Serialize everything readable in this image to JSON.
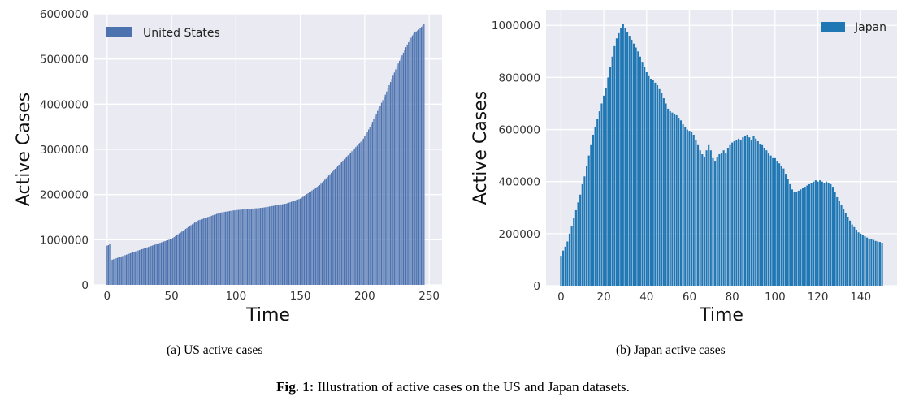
{
  "figure": {
    "caption_prefix": "Fig. 1:",
    "caption_text": " Illustration of active cases on the US and Japan datasets."
  },
  "chart_data": [
    {
      "type": "bar",
      "subcaption": "(a)  US active cases",
      "title": "",
      "xlabel": "Time",
      "ylabel": "Active Cases",
      "legend": "United States",
      "legend_position": "top-left",
      "color": "#4c72b0",
      "grid": true,
      "xlim": [
        -10,
        260
      ],
      "ylim": [
        0,
        6000000
      ],
      "xticks": [
        0,
        50,
        100,
        150,
        200,
        250
      ],
      "yticks": [
        0,
        1000000,
        2000000,
        3000000,
        4000000,
        5000000,
        6000000
      ],
      "series": [
        {
          "name": "United States",
          "x_start": 0,
          "values": [
            870000,
            880000,
            900000,
            550000,
            560000,
            570000,
            580000,
            590000,
            600000,
            610000,
            620000,
            630000,
            640000,
            650000,
            660000,
            670000,
            680000,
            690000,
            700000,
            710000,
            720000,
            730000,
            740000,
            750000,
            760000,
            770000,
            780000,
            790000,
            800000,
            810000,
            820000,
            830000,
            840000,
            850000,
            860000,
            870000,
            880000,
            890000,
            900000,
            910000,
            920000,
            930000,
            940000,
            950000,
            960000,
            970000,
            980000,
            990000,
            1000000,
            1010000,
            1020000,
            1040000,
            1060000,
            1080000,
            1100000,
            1120000,
            1140000,
            1160000,
            1180000,
            1200000,
            1220000,
            1240000,
            1260000,
            1280000,
            1300000,
            1320000,
            1340000,
            1360000,
            1380000,
            1400000,
            1420000,
            1430000,
            1440000,
            1450000,
            1460000,
            1470000,
            1480000,
            1490000,
            1500000,
            1510000,
            1520000,
            1530000,
            1540000,
            1550000,
            1560000,
            1570000,
            1580000,
            1590000,
            1600000,
            1605000,
            1610000,
            1615000,
            1620000,
            1625000,
            1630000,
            1635000,
            1640000,
            1645000,
            1650000,
            1650000,
            1655000,
            1660000,
            1660000,
            1665000,
            1665000,
            1670000,
            1670000,
            1675000,
            1675000,
            1680000,
            1680000,
            1685000,
            1685000,
            1690000,
            1690000,
            1695000,
            1695000,
            1700000,
            1700000,
            1705000,
            1705000,
            1710000,
            1715000,
            1720000,
            1725000,
            1730000,
            1735000,
            1740000,
            1745000,
            1750000,
            1755000,
            1760000,
            1765000,
            1770000,
            1775000,
            1780000,
            1785000,
            1790000,
            1795000,
            1800000,
            1810000,
            1820000,
            1830000,
            1840000,
            1850000,
            1860000,
            1870000,
            1880000,
            1890000,
            1900000,
            1910000,
            1930000,
            1950000,
            1970000,
            1990000,
            2010000,
            2030000,
            2050000,
            2070000,
            2090000,
            2110000,
            2130000,
            2150000,
            2170000,
            2190000,
            2210000,
            2240000,
            2270000,
            2300000,
            2330000,
            2360000,
            2390000,
            2420000,
            2450000,
            2480000,
            2510000,
            2540000,
            2570000,
            2600000,
            2630000,
            2660000,
            2690000,
            2720000,
            2750000,
            2780000,
            2810000,
            2840000,
            2870000,
            2900000,
            2930000,
            2960000,
            2990000,
            3020000,
            3050000,
            3080000,
            3110000,
            3140000,
            3170000,
            3200000,
            3240000,
            3290000,
            3340000,
            3390000,
            3440000,
            3490000,
            3550000,
            3610000,
            3670000,
            3730000,
            3790000,
            3850000,
            3910000,
            3970000,
            4030000,
            4090000,
            4150000,
            4210000,
            4280000,
            4350000,
            4420000,
            4490000,
            4560000,
            4630000,
            4700000,
            4770000,
            4840000,
            4900000,
            4960000,
            5020000,
            5080000,
            5140000,
            5200000,
            5260000,
            5320000,
            5370000,
            5420000,
            5470000,
            5520000,
            5560000,
            5590000,
            5610000,
            5630000,
            5650000,
            5680000,
            5710000,
            5740000,
            5780000
          ]
        }
      ]
    },
    {
      "type": "bar",
      "subcaption": "(b)  Japan active cases",
      "title": "",
      "xlabel": "Time",
      "ylabel": "Active Cases",
      "legend": "Japan",
      "legend_position": "top-right",
      "color": "#1f77b4",
      "grid": true,
      "xlim": [
        -7,
        157
      ],
      "ylim": [
        0,
        1060000
      ],
      "xticks": [
        0,
        20,
        40,
        60,
        80,
        100,
        120,
        140
      ],
      "yticks": [
        0,
        200000,
        400000,
        600000,
        800000,
        1000000
      ],
      "series": [
        {
          "name": "Japan",
          "x_start": 0,
          "values": [
            115000,
            135000,
            150000,
            170000,
            200000,
            230000,
            260000,
            290000,
            320000,
            350000,
            390000,
            420000,
            460000,
            500000,
            540000,
            580000,
            610000,
            640000,
            670000,
            700000,
            730000,
            760000,
            800000,
            840000,
            880000,
            920000,
            950000,
            970000,
            990000,
            1005000,
            990000,
            975000,
            960000,
            945000,
            930000,
            915000,
            900000,
            880000,
            860000,
            840000,
            820000,
            805000,
            795000,
            790000,
            780000,
            770000,
            755000,
            740000,
            720000,
            700000,
            680000,
            670000,
            665000,
            660000,
            655000,
            645000,
            635000,
            620000,
            610000,
            600000,
            595000,
            590000,
            580000,
            560000,
            540000,
            520000,
            505000,
            495000,
            520000,
            540000,
            520000,
            490000,
            480000,
            495000,
            505000,
            510000,
            520000,
            510000,
            530000,
            540000,
            550000,
            555000,
            560000,
            565000,
            560000,
            570000,
            575000,
            580000,
            570000,
            560000,
            575000,
            565000,
            555000,
            545000,
            540000,
            530000,
            520000,
            510000,
            500000,
            490000,
            490000,
            480000,
            470000,
            460000,
            450000,
            430000,
            410000,
            390000,
            370000,
            360000,
            360000,
            365000,
            370000,
            375000,
            380000,
            385000,
            390000,
            395000,
            400000,
            405000,
            400000,
            405000,
            400000,
            395000,
            400000,
            395000,
            390000,
            380000,
            360000,
            340000,
            325000,
            310000,
            295000,
            280000,
            265000,
            250000,
            235000,
            225000,
            215000,
            205000,
            200000,
            195000,
            190000,
            185000,
            180000,
            178000,
            176000,
            172000,
            170000,
            168000,
            165000
          ]
        }
      ]
    }
  ]
}
